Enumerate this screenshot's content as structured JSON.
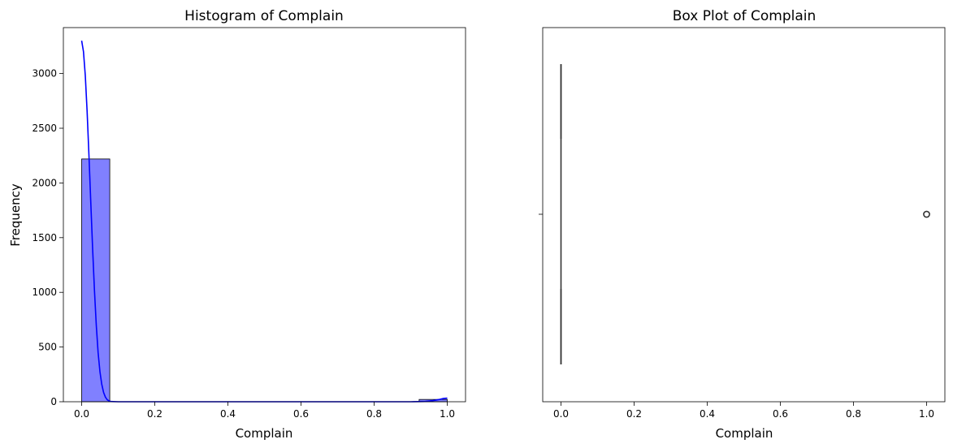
{
  "chart_data": [
    {
      "type": "bar",
      "title": "Histogram of Complain",
      "xlabel": "Complain",
      "ylabel": "Frequency",
      "xlim": [
        -0.05,
        1.05
      ],
      "ylim": [
        0,
        3420
      ],
      "xticks": [
        "0.0",
        "0.2",
        "0.4",
        "0.6",
        "0.8",
        "1.0"
      ],
      "yticks": [
        "0",
        "500",
        "1000",
        "1500",
        "2000",
        "2500",
        "3000"
      ],
      "bins": [
        {
          "x0": 0.0,
          "x1": 0.0769,
          "count": 2219
        },
        {
          "x0": 0.0769,
          "x1": 0.1538,
          "count": 0
        },
        {
          "x0": 0.1538,
          "x1": 0.2308,
          "count": 0
        },
        {
          "x0": 0.2308,
          "x1": 0.3077,
          "count": 0
        },
        {
          "x0": 0.3077,
          "x1": 0.3846,
          "count": 0
        },
        {
          "x0": 0.3846,
          "x1": 0.4615,
          "count": 0
        },
        {
          "x0": 0.4615,
          "x1": 0.5385,
          "count": 0
        },
        {
          "x0": 0.5385,
          "x1": 0.6154,
          "count": 0
        },
        {
          "x0": 0.6154,
          "x1": 0.6923,
          "count": 0
        },
        {
          "x0": 0.6923,
          "x1": 0.7692,
          "count": 0
        },
        {
          "x0": 0.7692,
          "x1": 0.8462,
          "count": 0
        },
        {
          "x0": 0.8462,
          "x1": 0.9231,
          "count": 0
        },
        {
          "x0": 0.9231,
          "x1": 1.0,
          "count": 21
        }
      ],
      "kde": [
        [
          0.0,
          3300
        ],
        [
          0.005,
          3200
        ],
        [
          0.01,
          2980
        ],
        [
          0.015,
          2650
        ],
        [
          0.02,
          2250
        ],
        [
          0.025,
          1820
        ],
        [
          0.03,
          1400
        ],
        [
          0.035,
          1020
        ],
        [
          0.04,
          700
        ],
        [
          0.045,
          450
        ],
        [
          0.05,
          275
        ],
        [
          0.055,
          160
        ],
        [
          0.06,
          85
        ],
        [
          0.065,
          42
        ],
        [
          0.07,
          18
        ],
        [
          0.075,
          7
        ],
        [
          0.08,
          2
        ],
        [
          0.1,
          0
        ],
        [
          0.5,
          0
        ],
        [
          0.9,
          0
        ],
        [
          0.94,
          2
        ],
        [
          0.96,
          10
        ],
        [
          0.98,
          22
        ],
        [
          0.99,
          30
        ],
        [
          1.0,
          33
        ]
      ],
      "bar_color": "#8080ff",
      "line_color": "#0000ff"
    },
    {
      "type": "box",
      "title": "Box Plot of Complain",
      "xlabel": "Complain",
      "xlim": [
        -0.05,
        1.05
      ],
      "xticks": [
        "0.0",
        "0.2",
        "0.4",
        "0.6",
        "0.8",
        "1.0"
      ],
      "box": {
        "q1": 0,
        "median": 0,
        "q3": 0,
        "whisker_low": 0,
        "whisker_high": 0
      },
      "outliers": [
        1.0
      ],
      "color": "#333333"
    }
  ]
}
